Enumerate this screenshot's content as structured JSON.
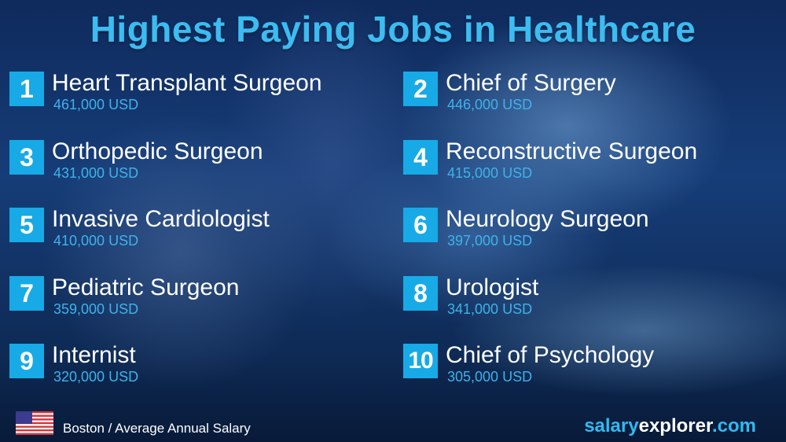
{
  "title": "Highest Paying Jobs in Healthcare",
  "jobs": [
    {
      "rank": "1",
      "name": "Heart Transplant Surgeon",
      "salary": "461,000 USD"
    },
    {
      "rank": "2",
      "name": "Chief of Surgery",
      "salary": "446,000 USD"
    },
    {
      "rank": "3",
      "name": "Orthopedic Surgeon",
      "salary": "431,000 USD"
    },
    {
      "rank": "4",
      "name": "Reconstructive Surgeon",
      "salary": "415,000 USD"
    },
    {
      "rank": "5",
      "name": "Invasive Cardiologist",
      "salary": "410,000 USD"
    },
    {
      "rank": "6",
      "name": "Neurology Surgeon",
      "salary": "397,000 USD"
    },
    {
      "rank": "7",
      "name": "Pediatric Surgeon",
      "salary": "359,000 USD"
    },
    {
      "rank": "8",
      "name": "Urologist",
      "salary": "341,000 USD"
    },
    {
      "rank": "9",
      "name": "Internist",
      "salary": "320,000 USD"
    },
    {
      "rank": "10",
      "name": "Chief of Psychology",
      "salary": "305,000 USD"
    }
  ],
  "footer": {
    "flag_icon": "us-flag-icon",
    "location": "Boston / Average Annual Salary",
    "brand": {
      "part1": "salary",
      "part2": "explorer",
      "part3": ".com"
    }
  },
  "colors": {
    "accent": "#17aae6",
    "title": "#3cbcf0",
    "salary": "#3fb2ea"
  }
}
